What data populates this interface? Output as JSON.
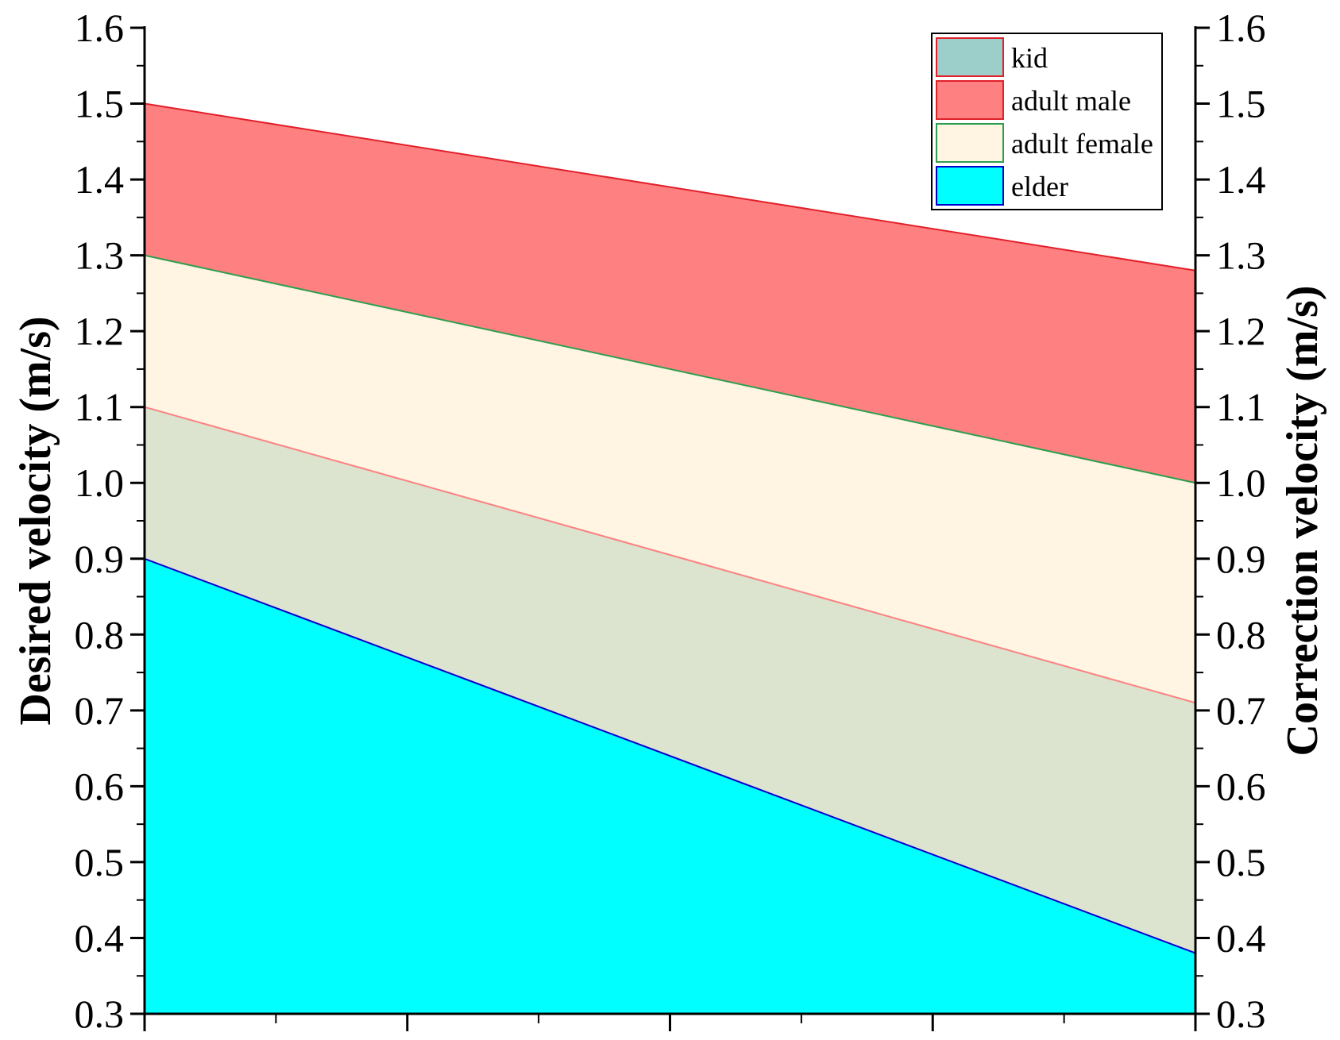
{
  "chart_data": {
    "type": "area",
    "x": [
      0,
      1
    ],
    "series": [
      {
        "name": "elder",
        "values": [
          0.9,
          0.38
        ],
        "color": "#00FFFF",
        "edge": "#0000CC"
      },
      {
        "name": "kid",
        "values": [
          1.1,
          0.71
        ],
        "color": "#DCE3CE",
        "edge": "#FF8080"
      },
      {
        "name": "adult female",
        "values": [
          1.3,
          1.0
        ],
        "color": "#FFF5E2",
        "edge": "#2E9E50"
      },
      {
        "name": "adult male",
        "values": [
          1.5,
          1.28
        ],
        "color": "#FF8080",
        "edge": "#E0202A"
      }
    ],
    "legend": [
      {
        "name": "kid",
        "color": "#9CCFC9",
        "edge": "#E0202A"
      },
      {
        "name": "adult male",
        "color": "#FF8080",
        "edge": "#E0202A"
      },
      {
        "name": "adult female",
        "color": "#FFF5E2",
        "edge": "#2E9E50"
      },
      {
        "name": "elder",
        "color": "#00FFFF",
        "edge": "#0000CC"
      }
    ],
    "legend_position": "top-right",
    "ylabel": "Desired  velocity (m/s)",
    "y2label": "Correction velocity (m/s)",
    "ylim": [
      0.3,
      1.6
    ],
    "y2lim": [
      0.3,
      1.6
    ],
    "yticks": [
      "0.3",
      "0.4",
      "0.5",
      "0.6",
      "0.7",
      "0.8",
      "0.9",
      "1.0",
      "1.1",
      "1.2",
      "1.3",
      "1.4",
      "1.5",
      "1.6"
    ],
    "grid": false,
    "x_major_ticks": 5,
    "x_minor_ticks": 4
  }
}
